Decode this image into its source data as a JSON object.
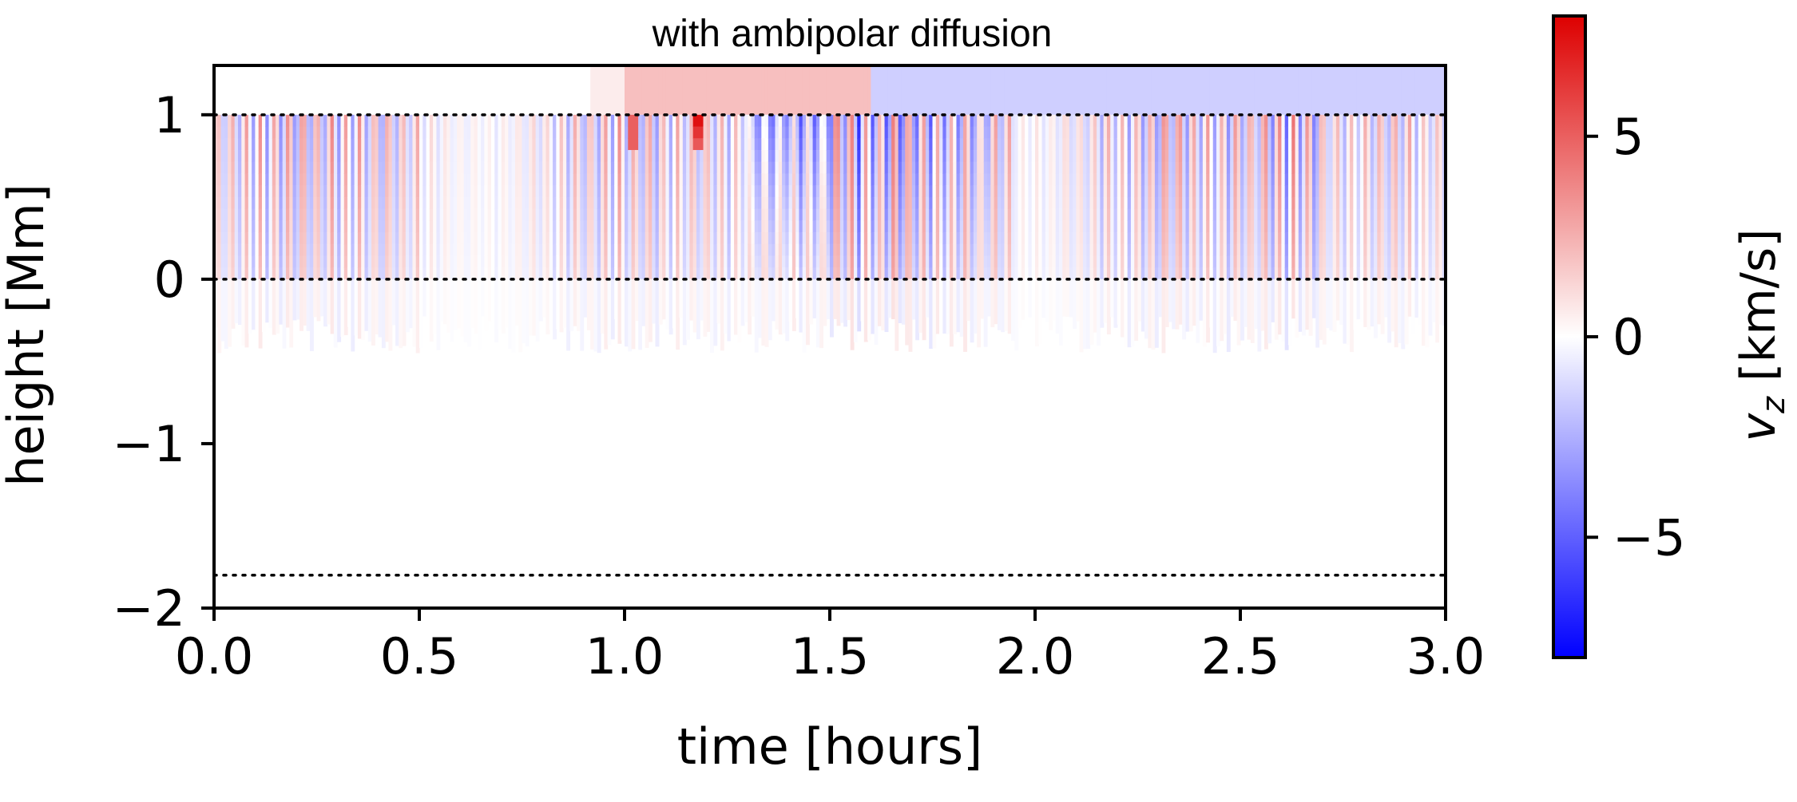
{
  "chart_data": {
    "type": "heatmap",
    "title": "with ambipolar diffusion",
    "xlabel": "time [hours]",
    "ylabel": "height [Mm]",
    "xlim": [
      0.0,
      3.0
    ],
    "ylim": [
      -2.0,
      1.3
    ],
    "x_ticks": [
      0.0,
      0.5,
      1.0,
      1.5,
      2.0,
      2.5,
      3.0
    ],
    "x_tick_labels": [
      "0.0",
      "0.5",
      "1.0",
      "1.5",
      "2.0",
      "2.5",
      "3.0"
    ],
    "y_ticks": [
      -2,
      -1,
      0,
      1
    ],
    "y_tick_labels": [
      "−2",
      "−1",
      "0",
      "1"
    ],
    "reference_lines": [
      1.0,
      0.0,
      -1.8
    ],
    "reference_line_style": "dotted",
    "colorbar": {
      "label_var": "v",
      "label_sub": "z",
      "label_unit": " [km/s]",
      "range": [
        -8,
        8
      ],
      "ticks": [
        5,
        0,
        -5
      ],
      "tick_labels": [
        "5",
        "0",
        "−5"
      ],
      "colormap": "bwr",
      "colors": {
        "low": "#0000ff",
        "mid": "#ffffff",
        "high": "#dd0000"
      }
    },
    "features": {
      "oscillation_band_ymin": 0.0,
      "oscillation_band_ymax": 1.0,
      "weak_tail_ymin": -0.45,
      "upper_layer": [
        {
          "t_start": 1.0,
          "t_end": 1.6,
          "vz": 2.0
        },
        {
          "t_start": 1.6,
          "t_end": 3.0,
          "vz": -1.5
        }
      ],
      "strongest_upflow": {
        "t": 1.18,
        "vz": 7.5
      },
      "strongest_downflow": {
        "t": 1.4,
        "vz": -5.0
      },
      "period_hours": 0.035
    }
  }
}
